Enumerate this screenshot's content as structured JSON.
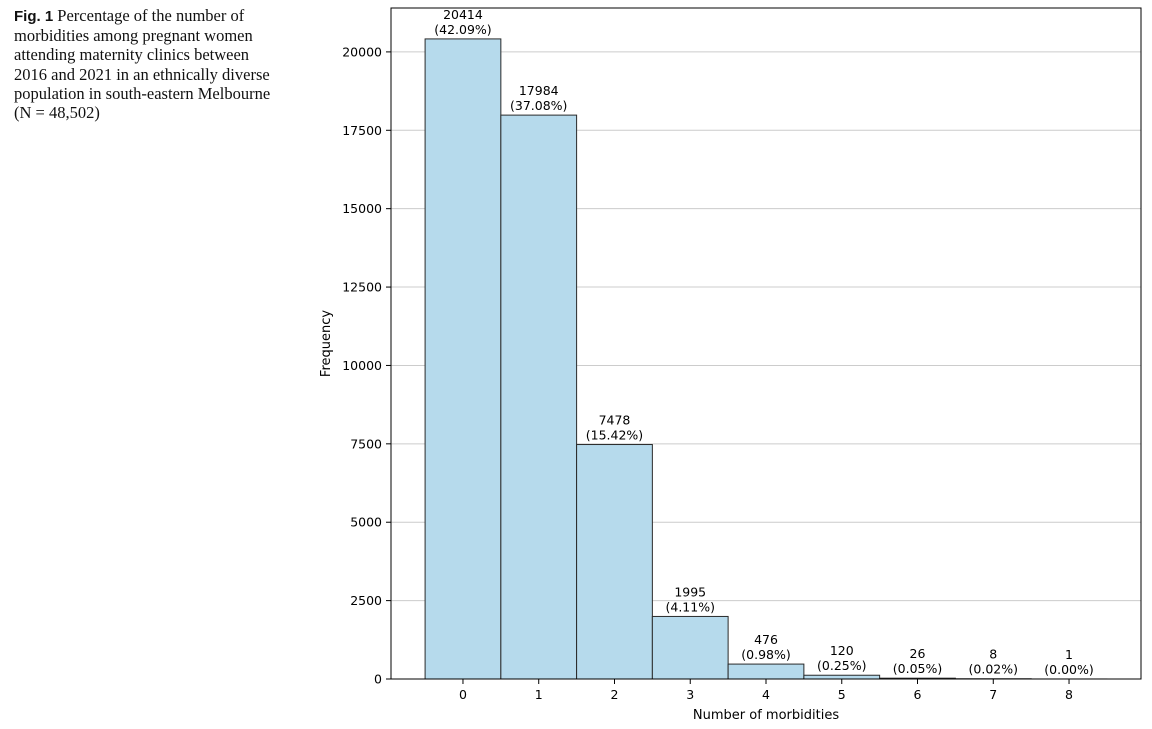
{
  "caption": {
    "label": "Fig. 1",
    "text": "Percentage of the number of morbidities among pregnant women attending maternity clinics between 2016 and 2021 in an ethnically diverse population in south-eastern Melbourne (N = 48,502)"
  },
  "colors": {
    "bar_fill": "#b6daec",
    "bar_edge": "#2a2a2a",
    "grid": "#cccccc"
  },
  "chart_data": {
    "type": "bar",
    "xlabel": "Number of morbidities",
    "ylabel": "Frequency",
    "categories": [
      "0",
      "1",
      "2",
      "3",
      "4",
      "5",
      "6",
      "7",
      "8"
    ],
    "values": [
      20414,
      17984,
      7478,
      1995,
      476,
      120,
      26,
      8,
      1
    ],
    "percent_labels": [
      "(42.09%)",
      "(37.08%)",
      "(15.42%)",
      "(4.11%)",
      "(0.98%)",
      "(0.25%)",
      "(0.05%)",
      "(0.02%)",
      "(0.00%)"
    ],
    "yticks": [
      0,
      2500,
      5000,
      7500,
      10000,
      12500,
      15000,
      17500,
      20000
    ],
    "ylim": [
      0,
      21400
    ],
    "xlim": [
      -0.95,
      8.95
    ],
    "grid": "horizontal"
  }
}
